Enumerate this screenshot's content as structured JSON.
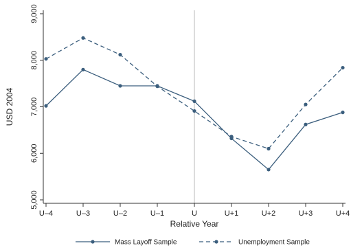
{
  "chart_data": {
    "type": "line",
    "title": "",
    "xlabel": "Relative Year",
    "ylabel": "USD 2004",
    "categories": [
      "U–4",
      "U–3",
      "U–2",
      "U–1",
      "U",
      "U+1",
      "U+2",
      "U+3",
      "U+4"
    ],
    "ylim": [
      5000,
      9000
    ],
    "yticks": [
      5000,
      6000,
      7000,
      8000,
      9000
    ],
    "ytick_labels": [
      "5,000",
      "6,000",
      "7,000",
      "8,000",
      "9,000"
    ],
    "reference_line_at": "U",
    "grid": false,
    "legend_position": "bottom",
    "series": [
      {
        "name": "Mass Layoff Sample",
        "style": "solid",
        "color": "#3b5e7d",
        "values": [
          7020,
          7800,
          7450,
          7450,
          7120,
          6320,
          5650,
          6620,
          6880
        ]
      },
      {
        "name": "Unemployment Sample",
        "style": "dashed",
        "color": "#3b5e7d",
        "values": [
          8030,
          8480,
          8120,
          7440,
          6910,
          6360,
          6100,
          7050,
          7840
        ]
      }
    ]
  }
}
